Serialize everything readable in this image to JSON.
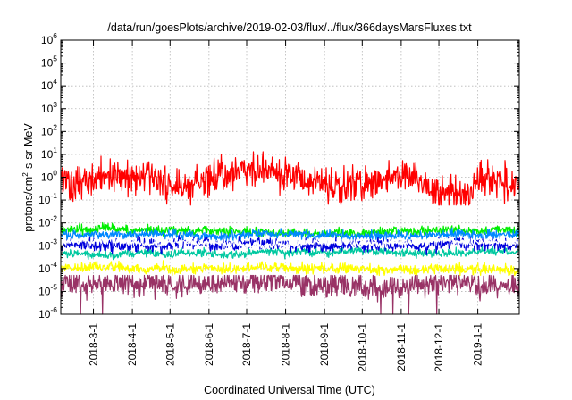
{
  "chart_data": {
    "type": "line",
    "title": "/data/run/goesPlots/archive/2019-02-03/flux/../flux/366daysMarsFluxes.txt",
    "xlabel": "Coordinated Universal Time (UTC)",
    "ylabel": {
      "base": "protons/cm",
      "sup": "2",
      "rest": "-s-sr-MeV"
    },
    "x_range": [
      "2018-02-03",
      "2019-02-03"
    ],
    "y_scale": "log",
    "ylim": [
      1e-06,
      1000000.0
    ],
    "y_ticks": [
      {
        "base": "10",
        "exp": "6"
      },
      {
        "base": "10",
        "exp": "5"
      },
      {
        "base": "10",
        "exp": "4"
      },
      {
        "base": "10",
        "exp": "3"
      },
      {
        "base": "10",
        "exp": "2"
      },
      {
        "base": "10",
        "exp": "1"
      },
      {
        "base": "10",
        "exp": "0"
      },
      {
        "base": "10",
        "exp": "-1"
      },
      {
        "base": "10",
        "exp": "-2"
      },
      {
        "base": "10",
        "exp": "-3"
      },
      {
        "base": "10",
        "exp": "-4"
      },
      {
        "base": "10",
        "exp": "-5"
      },
      {
        "base": "10",
        "exp": "-6"
      }
    ],
    "x_ticks": [
      "2018-3-1",
      "2018-4-1",
      "2018-5-1",
      "2018-6-1",
      "2018-7-1",
      "2018-8-1",
      "2018-9-1",
      "2018-10-1",
      "2018-11-1",
      "2018-12-1",
      "2019-1-1"
    ],
    "grid": true,
    "legend": "none",
    "series": [
      {
        "color": "#ff0000",
        "typical_value": 0.7,
        "min_approx": 0.06,
        "max_approx": 13
      },
      {
        "color": "#00ee00",
        "typical_value": 0.0048,
        "min_approx": 0.0025,
        "max_approx": 0.011
      },
      {
        "color": "#0088ff",
        "typical_value": 0.003,
        "min_approx": 0.0015,
        "max_approx": 0.006
      },
      {
        "color": "#ffffff",
        "typical_value": 0.0013,
        "min_approx": 0.0008,
        "max_approx": 0.0025
      },
      {
        "color": "#0000dd",
        "typical_value": 0.0011,
        "min_approx": 0.0004,
        "max_approx": 0.003
      },
      {
        "color": "#00c8a0",
        "typical_value": 0.0005,
        "min_approx": 0.00025,
        "max_approx": 0.0009
      },
      {
        "color": "#ffff00",
        "typical_value": 0.0001,
        "min_approx": 5e-05,
        "max_approx": 0.00025
      },
      {
        "color": "#993366",
        "typical_value": 2e-05,
        "min_approx": 1e-06,
        "max_approx": 5e-05
      }
    ]
  }
}
